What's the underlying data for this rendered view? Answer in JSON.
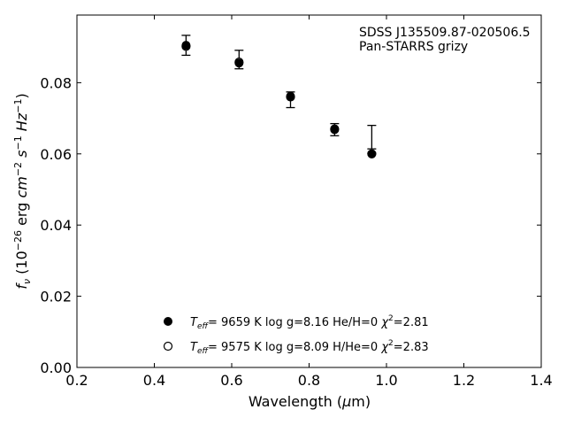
{
  "chart_data": {
    "type": "scatter",
    "xlabel": "Wavelength (μm)",
    "ylabel": "f_ν (10^-26 erg cm^-2 s^-1 Hz^-1)",
    "xlim": [
      0.2,
      1.4
    ],
    "ylim": [
      0.0,
      0.099
    ],
    "xticks": [
      0.2,
      0.4,
      0.6,
      0.8,
      1.0,
      1.2,
      1.4
    ],
    "xtick_labels": [
      "0.2",
      "0.4",
      "0.6",
      "0.8",
      "1.0",
      "1.2",
      "1.4"
    ],
    "yticks": [
      0.0,
      0.02,
      0.04,
      0.06,
      0.08
    ],
    "ytick_labels": [
      "0.00",
      "0.02",
      "0.04",
      "0.06",
      "0.08"
    ],
    "grid": false,
    "annotation": [
      "SDSS J135509.87-020506.5",
      "Pan-STARRS grizy"
    ],
    "observed": {
      "x": [
        0.482,
        0.619,
        0.752,
        0.866,
        0.962
      ],
      "y": [
        0.0905,
        0.0865,
        0.0752,
        0.0668,
        0.0647
      ],
      "yerr": [
        0.0028,
        0.0026,
        0.0022,
        0.0017,
        0.0033
      ]
    },
    "series": [
      {
        "name": "T_eff= 9659 K log g=8.16 He/H=0 χ²=2.81",
        "marker": "filled-circle",
        "x": [
          0.482,
          0.619,
          0.752,
          0.866,
          0.962
        ],
        "y": [
          0.0905,
          0.0855,
          0.0762,
          0.0668,
          0.06
        ]
      },
      {
        "name": "T_eff= 9575 K log g=8.09 H/He=0 χ²=2.83",
        "marker": "open-circle",
        "x": [
          0.482,
          0.619,
          0.752,
          0.866,
          0.962
        ],
        "y": [
          0.0902,
          0.0858,
          0.076,
          0.067,
          0.06
        ]
      }
    ],
    "legend": {
      "placement": "lower-center",
      "entries": [
        {
          "teff_label": "T",
          "teff_sub": "eff",
          "teff_value": "=  9659 K",
          "logg": "log g=8.16",
          "comp": "He/H=0",
          "chi": "χ",
          "chi_sup": "2",
          "chi_value": "=2.81"
        },
        {
          "teff_label": "T",
          "teff_sub": "eff",
          "teff_value": "=  9575 K",
          "logg": "log g=8.09",
          "comp": "H/He=0",
          "chi": "χ",
          "chi_sup": "2",
          "chi_value": "=2.83"
        }
      ]
    }
  }
}
